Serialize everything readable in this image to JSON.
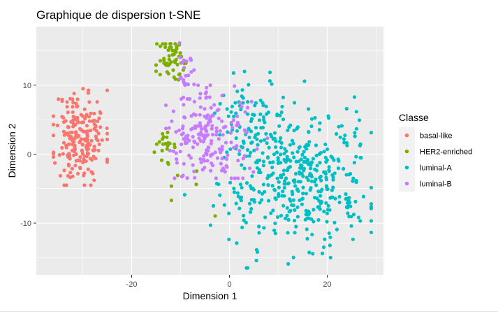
{
  "chart_data": {
    "type": "scatter",
    "title": "Graphique de dispersion t-SNE",
    "xlabel": "Dimension 1",
    "ylabel": "Dimension 2",
    "xlim": [
      -39.5,
      31.5
    ],
    "ylim": [
      -17.5,
      18.5
    ],
    "x_ticks": [
      -20,
      0,
      20
    ],
    "x_tick_labels": [
      "-20",
      "0",
      "20"
    ],
    "y_ticks": [
      -10,
      0,
      10
    ],
    "y_tick_labels": [
      "-10",
      "0",
      "10"
    ],
    "grid": true,
    "legend": {
      "title": "Classe",
      "position": "right"
    },
    "series": [
      {
        "name": "basal-like",
        "color": "#F8766D",
        "clusters": [
          {
            "cx": -30.5,
            "cy": 2.5,
            "sx": 2.6,
            "sy": 3.4,
            "n": 210,
            "xr": [
              -36,
              -25
            ],
            "yr": [
              -4.5,
              9.5
            ],
            "seed": 11
          }
        ]
      },
      {
        "name": "HER2-enriched",
        "color": "#7CAE00",
        "clusters": [
          {
            "cx": -11.5,
            "cy": 13.5,
            "sx": 1.6,
            "sy": 1.6,
            "n": 55,
            "xr": [
              -15,
              -8
            ],
            "yr": [
              9.5,
              16
            ],
            "seed": 21
          },
          {
            "cx": -13.5,
            "cy": 1.2,
            "sx": 1.0,
            "sy": 1.4,
            "n": 18,
            "xr": [
              -16,
              -11
            ],
            "yr": [
              -1.5,
              4
            ],
            "seed": 22
          },
          {
            "cx": -8,
            "cy": -3,
            "sx": 3.5,
            "sy": 3.5,
            "n": 8,
            "xr": [
              -15,
              15
            ],
            "yr": [
              -11,
              1
            ],
            "seed": 23
          }
        ]
      },
      {
        "name": "luminal-A",
        "color": "#00BFC4",
        "clusters": [
          {
            "cx": 13.5,
            "cy": -3.5,
            "sx": 7.5,
            "sy": 4.8,
            "n": 440,
            "xr": [
              -11,
              29
            ],
            "yr": [
              -16.5,
              12
            ],
            "seed": 31
          },
          {
            "cx": 4,
            "cy": 6,
            "sx": 4,
            "sy": 3,
            "n": 60,
            "xr": [
              -3,
              11
            ],
            "yr": [
              0,
              12
            ],
            "seed": 32
          }
        ]
      },
      {
        "name": "luminal-B",
        "color": "#C77CFF",
        "clusters": [
          {
            "cx": -4,
            "cy": 2.5,
            "sx": 4.5,
            "sy": 3.2,
            "n": 190,
            "xr": [
              -13,
              8
            ],
            "yr": [
              -3.5,
              10
            ],
            "seed": 41
          },
          {
            "cx": -9.5,
            "cy": 11.5,
            "sx": 1.2,
            "sy": 2.3,
            "n": 25,
            "xr": [
              -12,
              -7
            ],
            "yr": [
              8,
              17
            ],
            "seed": 42
          }
        ]
      }
    ]
  }
}
